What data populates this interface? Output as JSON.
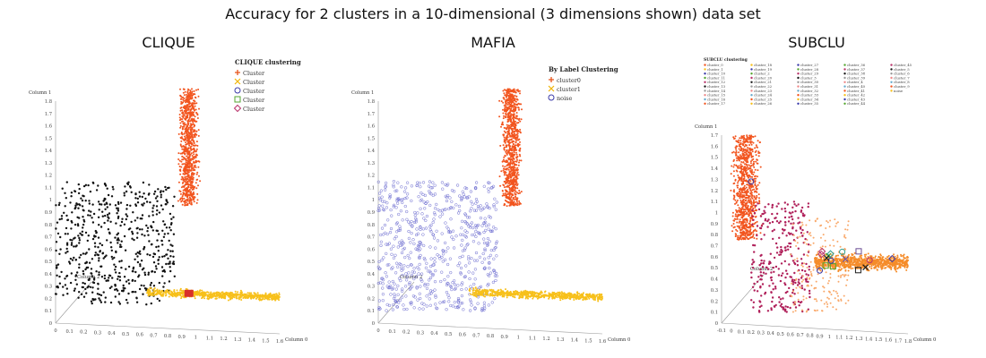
{
  "figure_title": "Accuracy for 2 clusters in a 10-dimensional (3 dimensions shown) data set",
  "chart_data": [
    {
      "type": "scatter",
      "title": "CLIQUE",
      "legend_title": "CLIQUE clustering",
      "legend": [
        {
          "label": "Cluster",
          "marker": "plus",
          "color": "#e8541a"
        },
        {
          "label": "Cluster",
          "marker": "x",
          "color": "#f0b400"
        },
        {
          "label": "Cluster",
          "marker": "circle",
          "color": "#3a3aa8"
        },
        {
          "label": "Cluster",
          "marker": "square",
          "color": "#55a630"
        },
        {
          "label": "Cluster",
          "marker": "diamond",
          "color": "#b8336a"
        }
      ],
      "axis_labels": {
        "x": "Column 0",
        "y": "Column 1",
        "z": "Column 2"
      },
      "x_ticks": [
        "0",
        "0.1",
        "0.2",
        "0.3",
        "0.4",
        "0.5",
        "0.6",
        "0.7",
        "0.8",
        "0.9",
        "1",
        "1.1",
        "1.2",
        "1.3",
        "1.4",
        "1.5",
        "1.6"
      ],
      "y_ticks": [
        "0",
        "0.1",
        "0.2",
        "0.3",
        "0.4",
        "0.5",
        "0.6",
        "0.7",
        "0.8",
        "0.9",
        "1",
        "1.1",
        "1.2",
        "1.3",
        "1.4",
        "1.5",
        "1.6",
        "1.7",
        "1.8"
      ],
      "xlim": [
        0,
        1.6
      ],
      "ylim": [
        0,
        1.8
      ],
      "series": [
        {
          "name": "",
          "role": "noise",
          "color": "#111111",
          "region": {
            "x": [
              0.0,
              0.85
            ],
            "y": [
              0.15,
              1.15
            ]
          }
        },
        {
          "name": "",
          "role": "vertical-cluster",
          "color": "#f2551f",
          "region": {
            "x": [
              0.85,
              1.05
            ],
            "y": [
              0.95,
              1.9
            ]
          }
        },
        {
          "name": "",
          "role": "horizontal-cluster",
          "color": "#f7c01a",
          "region": {
            "x": [
              0.65,
              1.6
            ],
            "y": [
              0.2,
              0.3
            ]
          }
        }
      ]
    },
    {
      "type": "scatter",
      "title": "MAFIA",
      "legend_title": "By Label Clustering",
      "legend": [
        {
          "label": "cluster0",
          "marker": "plus",
          "color": "#e8541a"
        },
        {
          "label": "cluster1",
          "marker": "x",
          "color": "#f0b400"
        },
        {
          "label": "noise",
          "marker": "circle",
          "color": "#3a3aa8"
        }
      ],
      "axis_labels": {
        "x": "Column 0",
        "y": "Column 1",
        "z": "Column 2"
      },
      "x_ticks": [
        "0",
        "0.1",
        "0.2",
        "0.3",
        "0.4",
        "0.5",
        "0.6",
        "0.7",
        "0.8",
        "0.9",
        "1",
        "1.1",
        "1.2",
        "1.3",
        "1.4",
        "1.5",
        "1.6"
      ],
      "y_ticks": [
        "0",
        "0.1",
        "0.2",
        "0.3",
        "0.4",
        "0.5",
        "0.6",
        "0.7",
        "0.8",
        "0.9",
        "1",
        "1.1",
        "1.2",
        "1.3",
        "1.4",
        "1.5",
        "1.6",
        "1.7",
        "1.8"
      ],
      "xlim": [
        0,
        1.6
      ],
      "ylim": [
        0,
        1.8
      ],
      "series": [
        {
          "name": "noise",
          "role": "noise",
          "color": "#6a6ad0",
          "region": {
            "x": [
              0.0,
              0.85
            ],
            "y": [
              0.1,
              1.15
            ]
          }
        },
        {
          "name": "cluster0",
          "role": "vertical-cluster",
          "color": "#f2551f",
          "region": {
            "x": [
              0.85,
              1.05
            ],
            "y": [
              0.95,
              1.9
            ]
          }
        },
        {
          "name": "cluster1",
          "role": "horizontal-cluster",
          "color": "#f7c01a",
          "region": {
            "x": [
              0.65,
              1.6
            ],
            "y": [
              0.2,
              0.3
            ]
          }
        }
      ]
    },
    {
      "type": "scatter",
      "title": "SUBCLU",
      "legend_title": "SUBCLU clustering",
      "legend": [
        "cluster_0",
        "cluster_1",
        "cluster_10",
        "cluster_11",
        "cluster_12",
        "cluster_13",
        "cluster_14",
        "cluster_15",
        "cluster_16",
        "cluster_17",
        "cluster_18",
        "cluster_19",
        "cluster_2",
        "cluster_20",
        "cluster_21",
        "cluster_22",
        "cluster_23",
        "cluster_24",
        "cluster_25",
        "cluster_26",
        "cluster_27",
        "cluster_28",
        "cluster_29",
        "cluster_3",
        "cluster_30",
        "cluster_31",
        "cluster_32",
        "cluster_33",
        "cluster_34",
        "cluster_35",
        "cluster_36",
        "cluster_37",
        "cluster_38",
        "cluster_39",
        "cluster_4",
        "cluster_40",
        "cluster_41",
        "cluster_42",
        "cluster_43",
        "cluster_44",
        "cluster_45",
        "cluster_5",
        "cluster_6",
        "cluster_7",
        "cluster_8",
        "cluster_9",
        "noise"
      ],
      "axis_labels": {
        "x": "Column 0",
        "y": "Column 1",
        "z": "Column 2"
      },
      "x_ticks": [
        "-0.1",
        "0",
        "0.1",
        "0.2",
        "0.3",
        "0.4",
        "0.5",
        "0.6",
        "0.7",
        "0.8",
        "0.9",
        "1",
        "1.1",
        "1.2",
        "1.3",
        "1.4",
        "1.5",
        "1.6",
        "1.7",
        "1.8"
      ],
      "y_ticks": [
        "0",
        "0.1",
        "0.2",
        "0.3",
        "0.4",
        "0.5",
        "0.6",
        "0.7",
        "0.8",
        "0.9",
        "1",
        "1.1",
        "1.2",
        "1.3",
        "1.4",
        "1.5",
        "1.6",
        "1.7"
      ],
      "xlim": [
        -0.1,
        1.8
      ],
      "ylim": [
        0,
        1.7
      ],
      "series": [
        {
          "name": "",
          "role": "vertical-cluster",
          "color": "#f2551f",
          "region": {
            "x": [
              0.0,
              0.3
            ],
            "y": [
              0.75,
              1.7
            ]
          }
        },
        {
          "name": "",
          "role": "noise",
          "color": "#b0205a",
          "region": {
            "x": [
              0.2,
              0.8
            ],
            "y": [
              0.1,
              1.1
            ]
          }
        },
        {
          "name": "",
          "role": "scatter-light",
          "color": "#f9a96b",
          "region": {
            "x": [
              0.6,
              1.2
            ],
            "y": [
              0.1,
              0.95
            ]
          }
        },
        {
          "name": "",
          "role": "horizontal-cluster",
          "color": "#f58c2a",
          "region": {
            "x": [
              0.85,
              1.8
            ],
            "y": [
              0.45,
              0.65
            ]
          }
        }
      ]
    }
  ],
  "colors": {
    "orange_red": "#f2551f",
    "yellow": "#f7c01a",
    "black": "#111111",
    "blue": "#6a6ad0",
    "crimson": "#b0205a",
    "light_orange": "#f9a96b",
    "orange": "#f58c2a"
  }
}
